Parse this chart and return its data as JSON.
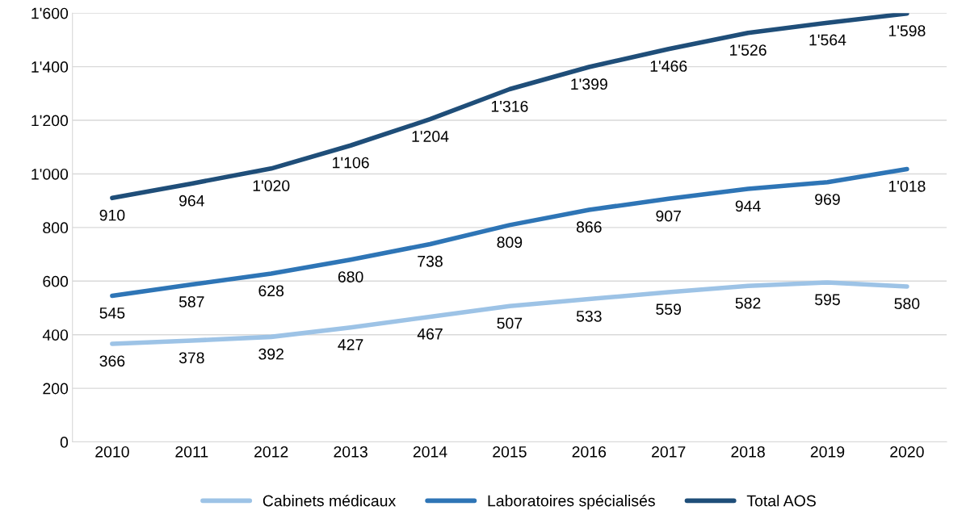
{
  "chart_data": {
    "type": "line",
    "categories": [
      "2010",
      "2011",
      "2012",
      "2013",
      "2014",
      "2015",
      "2016",
      "2017",
      "2018",
      "2019",
      "2020"
    ],
    "series": [
      {
        "name": "Cabinets médicaux",
        "color": "#9dc3e6",
        "values": [
          366,
          378,
          392,
          427,
          467,
          507,
          533,
          559,
          582,
          595,
          580
        ],
        "value_labels": [
          "366",
          "378",
          "392",
          "427",
          "467",
          "507",
          "533",
          "559",
          "582",
          "595",
          "580"
        ]
      },
      {
        "name": "Laboratoires spécialisés",
        "color": "#2e75b6",
        "values": [
          545,
          587,
          628,
          680,
          738,
          809,
          866,
          907,
          944,
          969,
          1018
        ],
        "value_labels": [
          "545",
          "587",
          "628",
          "680",
          "738",
          "809",
          "866",
          "907",
          "944",
          "969",
          "1'018"
        ]
      },
      {
        "name": "Total AOS",
        "color": "#1f4e79",
        "values": [
          910,
          964,
          1020,
          1106,
          1204,
          1316,
          1399,
          1466,
          1526,
          1564,
          1598
        ],
        "value_labels": [
          "910",
          "964",
          "1'020",
          "1'106",
          "1'204",
          "1'316",
          "1'399",
          "1'466",
          "1'526",
          "1'564",
          "1'598"
        ]
      }
    ],
    "ylim": [
      0,
      1600
    ],
    "yticks": [
      0,
      200,
      400,
      600,
      800,
      {
        "value": 1000,
        "label": "1'000"
      },
      {
        "value": 1200,
        "label": "1'200"
      },
      {
        "value": 1400,
        "label": "1'400"
      },
      {
        "value": 1600,
        "label": "1'600"
      }
    ],
    "grid": "y",
    "legend": "bottom",
    "marker": "none",
    "line_style": "solid"
  }
}
